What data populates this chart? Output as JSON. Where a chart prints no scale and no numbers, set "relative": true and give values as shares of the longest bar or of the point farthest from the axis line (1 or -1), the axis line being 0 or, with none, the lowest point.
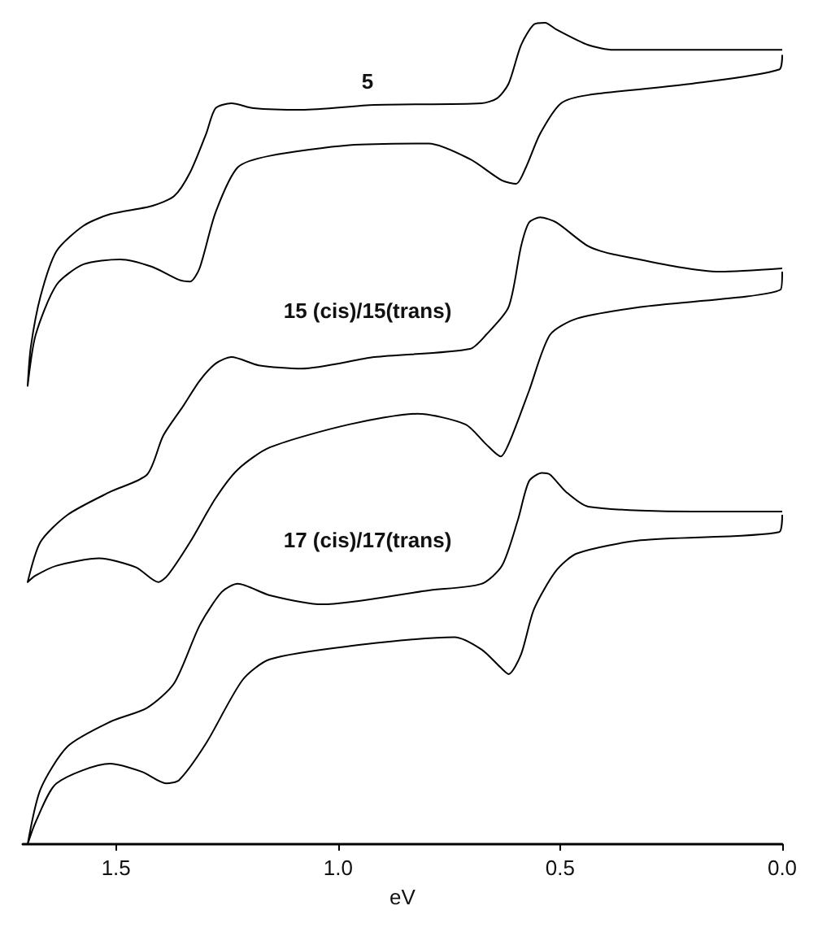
{
  "chart_data": {
    "type": "line",
    "xlabel": "eV",
    "xlim": [
      1.71,
      0
    ],
    "xticks": [
      {
        "value": 0,
        "label": "0.0"
      },
      0.5,
      {
        "value": 1,
        "label": "1.0"
      },
      1.5
    ],
    "relative": true,
    "grid": false,
    "marker": "none",
    "line_style": "solid",
    "annotations": [
      "5",
      "15 (cis)/15(trans)",
      "17 (cis)/17(trans)"
    ],
    "series": [
      {
        "color": "#000000",
        "x": [
          0.0,
          0.068,
          0.38,
          0.437,
          0.509,
          0.534,
          0.559,
          0.588,
          0.616,
          0.642,
          0.677,
          0.918,
          1.082,
          1.19,
          1.24,
          1.276,
          1.297,
          1.333,
          1.369,
          1.419,
          1.513,
          1.573,
          1.634,
          1.67,
          1.692,
          1.699,
          1.681,
          1.634,
          1.573,
          1.491,
          1.419,
          1.358,
          1.333,
          1.312,
          1.276,
          1.226,
          1.154,
          0.975,
          0.796,
          0.703,
          0.631,
          0.599,
          0.577,
          0.545,
          0.498,
          0.437,
          0.201,
          0.007,
          0.0
        ],
        "values": [
          0.967,
          0.967,
          0.967,
          0.973,
          0.992,
          1.0,
          0.998,
          0.973,
          0.926,
          0.908,
          0.902,
          0.9,
          0.894,
          0.896,
          0.902,
          0.896,
          0.865,
          0.818,
          0.789,
          0.777,
          0.767,
          0.753,
          0.722,
          0.667,
          0.605,
          0.558,
          0.62,
          0.681,
          0.706,
          0.712,
          0.703,
          0.687,
          0.685,
          0.701,
          0.769,
          0.824,
          0.838,
          0.851,
          0.853,
          0.834,
          0.808,
          0.804,
          0.824,
          0.865,
          0.902,
          0.912,
          0.926,
          0.943,
          0.961
        ]
      },
      {
        "color": "#000000",
        "x": [
          0.0,
          0.14,
          0.38,
          0.437,
          0.509,
          0.545,
          0.57,
          0.588,
          0.616,
          0.667,
          0.703,
          0.918,
          1.082,
          1.179,
          1.24,
          1.276,
          1.312,
          1.348,
          1.394,
          1.43,
          1.513,
          1.609,
          1.67,
          1.699,
          1.681,
          1.634,
          1.538,
          1.455,
          1.405,
          1.384,
          1.333,
          1.276,
          1.226,
          1.154,
          0.975,
          0.821,
          0.713,
          0.667,
          0.634,
          0.613,
          0.57,
          0.523,
          0.462,
          0.319,
          0.004,
          0.0
        ],
        "values": [
          0.701,
          0.697,
          0.718,
          0.728,
          0.757,
          0.763,
          0.757,
          0.728,
          0.654,
          0.62,
          0.603,
          0.593,
          0.579,
          0.583,
          0.593,
          0.585,
          0.564,
          0.534,
          0.497,
          0.45,
          0.429,
          0.401,
          0.368,
          0.319,
          0.327,
          0.339,
          0.348,
          0.337,
          0.319,
          0.327,
          0.368,
          0.421,
          0.456,
          0.483,
          0.511,
          0.524,
          0.511,
          0.487,
          0.472,
          0.491,
          0.552,
          0.62,
          0.64,
          0.654,
          0.675,
          0.697
        ]
      },
      {
        "color": "#000000",
        "x": [
          0.0,
          0.201,
          0.437,
          0.487,
          0.523,
          0.541,
          0.57,
          0.595,
          0.631,
          0.677,
          0.796,
          1.036,
          1.154,
          1.226,
          1.262,
          1.312,
          1.369,
          1.43,
          1.513,
          1.609,
          1.67,
          1.699,
          1.681,
          1.634,
          1.513,
          1.441,
          1.387,
          1.358,
          1.297,
          1.215,
          1.154,
          0.975,
          0.738,
          0.677,
          0.634,
          0.616,
          0.588,
          0.559,
          0.509,
          0.462,
          0.319,
          0.007,
          0.0
        ],
        "values": [
          0.405,
          0.405,
          0.411,
          0.429,
          0.45,
          0.452,
          0.442,
          0.395,
          0.339,
          0.317,
          0.309,
          0.292,
          0.303,
          0.317,
          0.307,
          0.266,
          0.196,
          0.166,
          0.149,
          0.119,
          0.067,
          0.0,
          0.027,
          0.074,
          0.098,
          0.088,
          0.074,
          0.078,
          0.123,
          0.2,
          0.225,
          0.241,
          0.252,
          0.237,
          0.215,
          0.207,
          0.231,
          0.286,
          0.333,
          0.354,
          0.37,
          0.38,
          0.401
        ]
      }
    ]
  }
}
